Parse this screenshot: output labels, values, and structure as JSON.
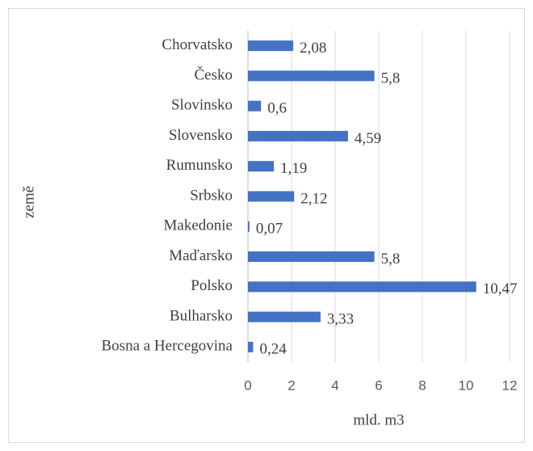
{
  "chart_data": {
    "type": "bar",
    "orientation": "horizontal",
    "x_label": "mld. m3",
    "y_label": "země",
    "categories": [
      "Chorvatsko",
      "Česko",
      "Slovinsko",
      "Slovensko",
      "Rumunsko",
      "Srbsko",
      "Makedonie",
      "Maďarsko",
      "Polsko",
      "Bulharsko",
      "Bosna a Hercegovina"
    ],
    "values": [
      2.08,
      5.8,
      0.6,
      4.59,
      1.19,
      2.12,
      0.07,
      5.8,
      10.47,
      3.33,
      0.24
    ],
    "value_labels": [
      "2,08",
      "5,8",
      "0,6",
      "4,59",
      "1,19",
      "2,12",
      "0,07",
      "5,8",
      "10,47",
      "3,33",
      "0,24"
    ],
    "color": "#4472c4",
    "xlim": [
      0,
      12
    ],
    "xticks": [
      0,
      2,
      4,
      6,
      8,
      10,
      12
    ],
    "grid": true
  }
}
